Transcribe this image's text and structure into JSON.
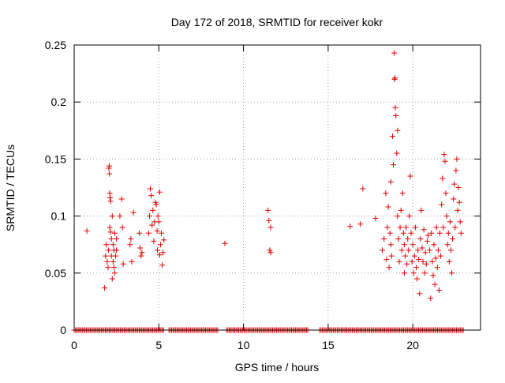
{
  "chart_data": {
    "type": "scatter",
    "title": "Day 172 of 2018, SRMTID for receiver kokr",
    "xlabel": "GPS time / hours",
    "ylabel": "SRMTID / TECUs",
    "xlim": [
      0,
      24
    ],
    "ylim": [
      0,
      0.25
    ],
    "x_ticks": [
      {
        "value": 0,
        "label": "0"
      },
      {
        "value": 5,
        "label": "5"
      },
      {
        "value": 10,
        "label": "10"
      },
      {
        "value": 15,
        "label": "15"
      },
      {
        "value": 20,
        "label": "20"
      }
    ],
    "y_ticks": [
      {
        "value": 0,
        "label": "0"
      },
      {
        "value": 0.05,
        "label": "0.05"
      },
      {
        "value": 0.1,
        "label": "0.1"
      },
      {
        "value": 0.15,
        "label": "0.15"
      },
      {
        "value": 0.2,
        "label": "0.2"
      },
      {
        "value": 0.25,
        "label": "0.25"
      }
    ],
    "grid": true,
    "marker_color": "#e00000",
    "series": [
      {
        "name": "SRMTID",
        "marker": "plus",
        "baseline_points": {
          "y": 0,
          "x_ranges": [
            [
              0.0,
              5.3
            ],
            [
              5.6,
              8.5
            ],
            [
              9.0,
              13.8
            ],
            [
              14.5,
              23.0
            ]
          ],
          "step": 0.08
        },
        "points": [
          [
            0.75,
            0.087
          ],
          [
            1.8,
            0.037
          ],
          [
            1.85,
            0.065
          ],
          [
            1.9,
            0.075
          ],
          [
            1.95,
            0.06
          ],
          [
            2.0,
            0.055
          ],
          [
            2.02,
            0.07
          ],
          [
            2.05,
            0.142
          ],
          [
            2.07,
            0.144
          ],
          [
            2.08,
            0.137
          ],
          [
            2.1,
            0.12
          ],
          [
            2.1,
            0.09
          ],
          [
            2.12,
            0.116
          ],
          [
            2.15,
            0.113
          ],
          [
            2.15,
            0.086
          ],
          [
            2.2,
            0.08
          ],
          [
            2.2,
            0.065
          ],
          [
            2.25,
            0.1
          ],
          [
            2.25,
            0.045
          ],
          [
            2.3,
            0.075
          ],
          [
            2.3,
            0.06
          ],
          [
            2.35,
            0.07
          ],
          [
            2.35,
            0.055
          ],
          [
            2.4,
            0.085
          ],
          [
            2.4,
            0.05
          ],
          [
            2.45,
            0.065
          ],
          [
            2.5,
            0.07
          ],
          [
            2.5,
            0.08
          ],
          [
            2.7,
            0.1
          ],
          [
            2.8,
            0.115
          ],
          [
            2.85,
            0.09
          ],
          [
            2.9,
            0.058
          ],
          [
            3.3,
            0.075
          ],
          [
            3.35,
            0.08
          ],
          [
            3.4,
            0.06
          ],
          [
            3.5,
            0.103
          ],
          [
            3.85,
            0.085
          ],
          [
            3.9,
            0.072
          ],
          [
            3.95,
            0.065
          ],
          [
            4.0,
            0.068
          ],
          [
            4.4,
            0.085
          ],
          [
            4.45,
            0.1
          ],
          [
            4.5,
            0.124
          ],
          [
            4.55,
            0.118
          ],
          [
            4.6,
            0.092
          ],
          [
            4.65,
            0.105
          ],
          [
            4.7,
            0.078
          ],
          [
            4.75,
            0.095
          ],
          [
            4.8,
            0.112
          ],
          [
            4.85,
            0.11
          ],
          [
            4.9,
            0.087
          ],
          [
            4.92,
            0.07
          ],
          [
            4.95,
            0.1
          ],
          [
            5.0,
            0.095
          ],
          [
            5.05,
            0.121
          ],
          [
            5.05,
            0.066
          ],
          [
            5.1,
            0.075
          ],
          [
            5.15,
            0.085
          ],
          [
            5.2,
            0.057
          ],
          [
            5.25,
            0.068
          ],
          [
            5.3,
            0.079
          ],
          [
            8.9,
            0.076
          ],
          [
            11.45,
            0.105
          ],
          [
            11.5,
            0.096
          ],
          [
            11.55,
            0.07
          ],
          [
            11.6,
            0.068
          ],
          [
            11.6,
            0.09
          ],
          [
            16.3,
            0.091
          ],
          [
            16.9,
            0.093
          ],
          [
            17.05,
            0.124
          ],
          [
            17.8,
            0.098
          ],
          [
            18.2,
            0.07
          ],
          [
            18.3,
            0.08
          ],
          [
            18.4,
            0.12
          ],
          [
            18.45,
            0.062
          ],
          [
            18.5,
            0.09
          ],
          [
            18.55,
            0.108
          ],
          [
            18.6,
            0.055
          ],
          [
            18.65,
            0.085
          ],
          [
            18.7,
            0.075
          ],
          [
            18.7,
            0.13
          ],
          [
            18.75,
            0.065
          ],
          [
            18.8,
            0.17
          ],
          [
            18.85,
            0.145
          ],
          [
            18.9,
            0.243
          ],
          [
            18.92,
            0.22
          ],
          [
            18.95,
            0.221
          ],
          [
            18.97,
            0.195
          ],
          [
            19.0,
            0.188
          ],
          [
            19.05,
            0.155
          ],
          [
            19.1,
            0.175
          ],
          [
            19.1,
            0.1
          ],
          [
            19.15,
            0.08
          ],
          [
            19.2,
            0.06
          ],
          [
            19.25,
            0.09
          ],
          [
            19.3,
            0.105
          ],
          [
            19.35,
            0.07
          ],
          [
            19.4,
            0.12
          ],
          [
            19.45,
            0.085
          ],
          [
            19.5,
            0.075
          ],
          [
            19.5,
            0.05
          ],
          [
            19.55,
            0.065
          ],
          [
            19.6,
            0.09
          ],
          [
            19.65,
            0.058
          ],
          [
            19.7,
            0.08
          ],
          [
            19.75,
            0.07
          ],
          [
            19.8,
            0.1
          ],
          [
            19.85,
            0.135
          ],
          [
            19.9,
            0.085
          ],
          [
            19.95,
            0.06
          ],
          [
            20.0,
            0.075
          ],
          [
            20.05,
            0.05
          ],
          [
            20.1,
            0.065
          ],
          [
            20.15,
            0.09
          ],
          [
            20.2,
            0.055
          ],
          [
            20.25,
            0.045
          ],
          [
            20.3,
            0.07
          ],
          [
            20.35,
            0.062
          ],
          [
            20.4,
            0.032
          ],
          [
            20.45,
            0.08
          ],
          [
            20.5,
            0.105
          ],
          [
            20.55,
            0.072
          ],
          [
            20.6,
            0.06
          ],
          [
            20.65,
            0.088
          ],
          [
            20.7,
            0.05
          ],
          [
            20.75,
            0.068
          ],
          [
            20.8,
            0.058
          ],
          [
            20.85,
            0.078
          ],
          [
            20.9,
            0.083
          ],
          [
            21.0,
            0.07
          ],
          [
            21.05,
            0.028
          ],
          [
            21.1,
            0.085
          ],
          [
            21.15,
            0.06
          ],
          [
            21.2,
            0.048
          ],
          [
            21.25,
            0.075
          ],
          [
            21.3,
            0.04
          ],
          [
            21.35,
            0.063
          ],
          [
            21.4,
            0.09
          ],
          [
            21.45,
            0.055
          ],
          [
            21.5,
            0.07
          ],
          [
            21.55,
            0.035
          ],
          [
            21.6,
            0.085
          ],
          [
            21.65,
            0.065
          ],
          [
            21.7,
            0.11
          ],
          [
            21.75,
            0.133
          ],
          [
            21.8,
            0.09
          ],
          [
            21.85,
            0.154
          ],
          [
            21.9,
            0.148
          ],
          [
            21.95,
            0.12
          ],
          [
            22.0,
            0.1
          ],
          [
            22.05,
            0.075
          ],
          [
            22.1,
            0.085
          ],
          [
            22.15,
            0.06
          ],
          [
            22.2,
            0.095
          ],
          [
            22.25,
            0.07
          ],
          [
            22.3,
            0.05
          ],
          [
            22.35,
            0.08
          ],
          [
            22.4,
            0.115
          ],
          [
            22.45,
            0.128
          ],
          [
            22.5,
            0.09
          ],
          [
            22.55,
            0.14
          ],
          [
            22.6,
            0.15
          ],
          [
            22.65,
            0.105
          ],
          [
            22.7,
            0.125
          ],
          [
            22.75,
            0.112
          ],
          [
            22.8,
            0.095
          ],
          [
            22.85,
            0.085
          ]
        ]
      }
    ]
  }
}
